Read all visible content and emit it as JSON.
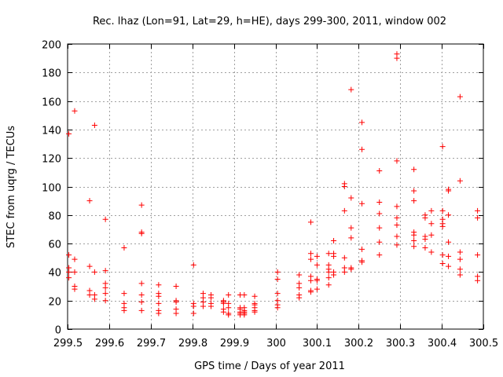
{
  "chart_data": {
    "type": "scatter",
    "title": "Rec. lhaz (Lon=91, Lat=29, h=HE), days 299-300, 2011, window 002",
    "xlabel": "GPS time / Days of year 2011",
    "ylabel": "STEC from uqrg / TECUs",
    "xlim": [
      299.5,
      300.5
    ],
    "ylim": [
      0,
      200
    ],
    "x_ticks": [
      299.5,
      299.6,
      299.7,
      299.8,
      299.9,
      300,
      300.1,
      300.2,
      300.3,
      300.4,
      300.5
    ],
    "x_tick_labels": [
      "299.5",
      "299.6",
      "299.7",
      "299.8",
      "299.9",
      "300",
      "300.1",
      "300.2",
      "300.3",
      "300.4",
      "300.5"
    ],
    "y_ticks": [
      0,
      20,
      40,
      60,
      80,
      100,
      120,
      140,
      160,
      180,
      200
    ],
    "y_tick_labels": [
      "0",
      "20",
      "40",
      "60",
      "80",
      "100",
      "120",
      "140",
      "160",
      "180",
      "200"
    ],
    "grid": true,
    "marker": "+",
    "color": "#ff0000",
    "points": [
      [
        299.503,
        137
      ],
      [
        299.503,
        52
      ],
      [
        299.503,
        43
      ],
      [
        299.503,
        40
      ],
      [
        299.503,
        36
      ],
      [
        299.517,
        153
      ],
      [
        299.517,
        49
      ],
      [
        299.517,
        40
      ],
      [
        299.517,
        30
      ],
      [
        299.517,
        28
      ],
      [
        299.553,
        90
      ],
      [
        299.553,
        44
      ],
      [
        299.553,
        27
      ],
      [
        299.553,
        24
      ],
      [
        299.565,
        143
      ],
      [
        299.565,
        40
      ],
      [
        299.565,
        24
      ],
      [
        299.565,
        21
      ],
      [
        299.591,
        77
      ],
      [
        299.591,
        41
      ],
      [
        299.591,
        32
      ],
      [
        299.591,
        29
      ],
      [
        299.591,
        25
      ],
      [
        299.591,
        20
      ],
      [
        299.636,
        57
      ],
      [
        299.636,
        25
      ],
      [
        299.636,
        18
      ],
      [
        299.636,
        15
      ],
      [
        299.636,
        13
      ],
      [
        299.678,
        87
      ],
      [
        299.678,
        68
      ],
      [
        299.678,
        67
      ],
      [
        299.678,
        32
      ],
      [
        299.678,
        24
      ],
      [
        299.678,
        19
      ],
      [
        299.678,
        13
      ],
      [
        299.719,
        31
      ],
      [
        299.719,
        25
      ],
      [
        299.719,
        23
      ],
      [
        299.719,
        18
      ],
      [
        299.719,
        13
      ],
      [
        299.719,
        11
      ],
      [
        299.761,
        30
      ],
      [
        299.761,
        20
      ],
      [
        299.761,
        19
      ],
      [
        299.761,
        14
      ],
      [
        299.761,
        11
      ],
      [
        299.803,
        45
      ],
      [
        299.803,
        18
      ],
      [
        299.803,
        16
      ],
      [
        299.803,
        11
      ],
      [
        299.826,
        25
      ],
      [
        299.826,
        22
      ],
      [
        299.826,
        19
      ],
      [
        299.826,
        16
      ],
      [
        299.845,
        24
      ],
      [
        299.845,
        22
      ],
      [
        299.845,
        18
      ],
      [
        299.845,
        16
      ],
      [
        299.875,
        20
      ],
      [
        299.875,
        19
      ],
      [
        299.875,
        18
      ],
      [
        299.875,
        14
      ],
      [
        299.875,
        12
      ],
      [
        299.887,
        24
      ],
      [
        299.887,
        18
      ],
      [
        299.887,
        15
      ],
      [
        299.887,
        11
      ],
      [
        299.887,
        10
      ],
      [
        299.915,
        24
      ],
      [
        299.915,
        15
      ],
      [
        299.915,
        14
      ],
      [
        299.915,
        12
      ],
      [
        299.915,
        11
      ],
      [
        299.915,
        10
      ],
      [
        299.925,
        24
      ],
      [
        299.925,
        15
      ],
      [
        299.925,
        13
      ],
      [
        299.925,
        12
      ],
      [
        299.925,
        11
      ],
      [
        299.925,
        10
      ],
      [
        299.95,
        23
      ],
      [
        299.95,
        18
      ],
      [
        299.95,
        17
      ],
      [
        299.95,
        15
      ],
      [
        299.95,
        13
      ],
      [
        299.95,
        12
      ],
      [
        300.005,
        40
      ],
      [
        300.005,
        35
      ],
      [
        300.005,
        25
      ],
      [
        300.005,
        20
      ],
      [
        300.005,
        17
      ],
      [
        300.005,
        15
      ],
      [
        300.057,
        38
      ],
      [
        300.057,
        32
      ],
      [
        300.057,
        29
      ],
      [
        300.057,
        24
      ],
      [
        300.057,
        22
      ],
      [
        300.085,
        75
      ],
      [
        300.085,
        53
      ],
      [
        300.085,
        49
      ],
      [
        300.085,
        37
      ],
      [
        300.085,
        34
      ],
      [
        300.085,
        27
      ],
      [
        300.085,
        26
      ],
      [
        300.1,
        51
      ],
      [
        300.1,
        45
      ],
      [
        300.1,
        35
      ],
      [
        300.1,
        34
      ],
      [
        300.1,
        28
      ],
      [
        300.128,
        53
      ],
      [
        300.128,
        45
      ],
      [
        300.128,
        42
      ],
      [
        300.128,
        40
      ],
      [
        300.128,
        36
      ],
      [
        300.128,
        31
      ],
      [
        300.14,
        62
      ],
      [
        300.14,
        53
      ],
      [
        300.14,
        51
      ],
      [
        300.14,
        40
      ],
      [
        300.14,
        38
      ],
      [
        300.166,
        102
      ],
      [
        300.166,
        100
      ],
      [
        300.166,
        83
      ],
      [
        300.166,
        50
      ],
      [
        300.166,
        43
      ],
      [
        300.166,
        40
      ],
      [
        300.182,
        168
      ],
      [
        300.182,
        92
      ],
      [
        300.182,
        71
      ],
      [
        300.182,
        64
      ],
      [
        300.182,
        43
      ],
      [
        300.182,
        42
      ],
      [
        300.208,
        145
      ],
      [
        300.208,
        126
      ],
      [
        300.208,
        88
      ],
      [
        300.208,
        56
      ],
      [
        300.208,
        48
      ],
      [
        300.208,
        47
      ],
      [
        300.25,
        111
      ],
      [
        300.25,
        89
      ],
      [
        300.25,
        81
      ],
      [
        300.25,
        71
      ],
      [
        300.25,
        61
      ],
      [
        300.25,
        52
      ],
      [
        300.292,
        193
      ],
      [
        300.292,
        190
      ],
      [
        300.292,
        118
      ],
      [
        300.292,
        86
      ],
      [
        300.292,
        78
      ],
      [
        300.292,
        73
      ],
      [
        300.292,
        65
      ],
      [
        300.292,
        59
      ],
      [
        300.333,
        112
      ],
      [
        300.333,
        97
      ],
      [
        300.333,
        90
      ],
      [
        300.333,
        68
      ],
      [
        300.333,
        66
      ],
      [
        300.333,
        62
      ],
      [
        300.333,
        58
      ],
      [
        300.36,
        80
      ],
      [
        300.36,
        78
      ],
      [
        300.36,
        65
      ],
      [
        300.36,
        63
      ],
      [
        300.36,
        57
      ],
      [
        300.375,
        83
      ],
      [
        300.375,
        74
      ],
      [
        300.375,
        66
      ],
      [
        300.375,
        54
      ],
      [
        300.402,
        128
      ],
      [
        300.402,
        83
      ],
      [
        300.402,
        77
      ],
      [
        300.402,
        74
      ],
      [
        300.402,
        72
      ],
      [
        300.402,
        52
      ],
      [
        300.402,
        46
      ],
      [
        300.416,
        98
      ],
      [
        300.416,
        97
      ],
      [
        300.416,
        80
      ],
      [
        300.416,
        61
      ],
      [
        300.416,
        51
      ],
      [
        300.416,
        44
      ],
      [
        300.444,
        163
      ],
      [
        300.444,
        104
      ],
      [
        300.444,
        54
      ],
      [
        300.444,
        49
      ],
      [
        300.444,
        42
      ],
      [
        300.444,
        38
      ],
      [
        300.486,
        83
      ],
      [
        300.486,
        78
      ],
      [
        300.486,
        52
      ],
      [
        300.486,
        37
      ],
      [
        300.486,
        34
      ]
    ]
  }
}
